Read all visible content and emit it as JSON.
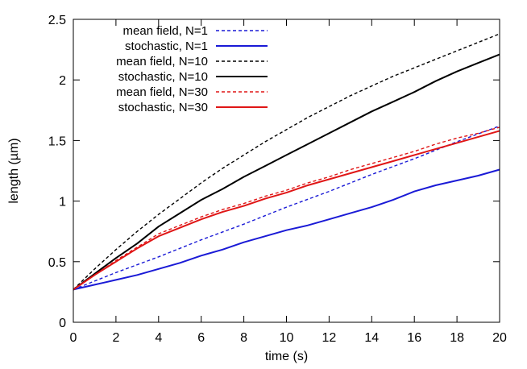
{
  "chart_data": {
    "type": "line",
    "xlabel": "time (s)",
    "ylabel": "length (µm)",
    "xlim": [
      0,
      20
    ],
    "ylim": [
      0,
      2.5
    ],
    "xticks": [
      "0",
      "2",
      "4",
      "6",
      "8",
      "10",
      "12",
      "14",
      "16",
      "18",
      "20"
    ],
    "yticks": [
      "0",
      "0.5",
      "1",
      "1.5",
      "2",
      "2.5"
    ],
    "grid": false,
    "legend_position": "top-left",
    "series": [
      {
        "name": "mean field, N=1",
        "color": "#1a1ad6",
        "style": "dashed",
        "x": [
          0,
          2,
          4,
          6,
          8,
          10,
          12,
          14,
          16,
          18,
          20
        ],
        "y": [
          0.27,
          0.41,
          0.54,
          0.68,
          0.81,
          0.95,
          1.08,
          1.22,
          1.35,
          1.49,
          1.62
        ]
      },
      {
        "name": "stochastic, N=1",
        "color": "#1a1ad6",
        "style": "solid",
        "x": [
          0,
          1,
          2,
          3,
          4,
          5,
          6,
          7,
          8,
          9,
          10,
          11,
          12,
          13,
          14,
          15,
          16,
          17,
          18,
          19,
          20
        ],
        "y": [
          0.27,
          0.31,
          0.35,
          0.39,
          0.44,
          0.49,
          0.55,
          0.6,
          0.66,
          0.71,
          0.76,
          0.8,
          0.85,
          0.9,
          0.95,
          1.01,
          1.08,
          1.13,
          1.17,
          1.21,
          1.26
        ]
      },
      {
        "name": "mean field, N=10",
        "color": "#000000",
        "style": "dashed",
        "x": [
          0,
          1,
          2,
          3,
          4,
          5,
          6,
          7,
          8,
          9,
          10,
          11,
          12,
          13,
          14,
          15,
          16,
          17,
          18,
          19,
          20
        ],
        "y": [
          0.27,
          0.44,
          0.6,
          0.75,
          0.89,
          1.02,
          1.15,
          1.27,
          1.38,
          1.49,
          1.59,
          1.69,
          1.78,
          1.87,
          1.95,
          2.03,
          2.1,
          2.17,
          2.24,
          2.31,
          2.38
        ]
      },
      {
        "name": "stochastic, N=10",
        "color": "#000000",
        "style": "solid",
        "x": [
          0,
          1,
          2,
          3,
          4,
          5,
          6,
          7,
          8,
          9,
          10,
          11,
          12,
          13,
          14,
          15,
          16,
          17,
          18,
          19,
          20
        ],
        "y": [
          0.27,
          0.4,
          0.53,
          0.65,
          0.79,
          0.9,
          1.01,
          1.1,
          1.2,
          1.29,
          1.38,
          1.47,
          1.56,
          1.65,
          1.74,
          1.82,
          1.9,
          1.99,
          2.07,
          2.14,
          2.21
        ]
      },
      {
        "name": "mean field, N=30",
        "color": "#e01616",
        "style": "dashed",
        "x": [
          0,
          1,
          2,
          3,
          4,
          5,
          6,
          7,
          8,
          9,
          10,
          11,
          12,
          13,
          14,
          15,
          16,
          17,
          18,
          19,
          20
        ],
        "y": [
          0.27,
          0.39,
          0.51,
          0.62,
          0.73,
          0.8,
          0.87,
          0.93,
          0.98,
          1.04,
          1.09,
          1.15,
          1.2,
          1.26,
          1.31,
          1.36,
          1.41,
          1.47,
          1.52,
          1.56,
          1.61
        ]
      },
      {
        "name": "stochastic, N=30",
        "color": "#e01616",
        "style": "solid",
        "x": [
          0,
          1,
          2,
          3,
          4,
          5,
          6,
          7,
          8,
          9,
          10,
          11,
          12,
          13,
          14,
          15,
          16,
          17,
          18,
          19,
          20
        ],
        "y": [
          0.27,
          0.39,
          0.5,
          0.61,
          0.71,
          0.78,
          0.85,
          0.91,
          0.96,
          1.02,
          1.07,
          1.13,
          1.18,
          1.23,
          1.28,
          1.33,
          1.38,
          1.43,
          1.48,
          1.53,
          1.58
        ]
      }
    ]
  }
}
